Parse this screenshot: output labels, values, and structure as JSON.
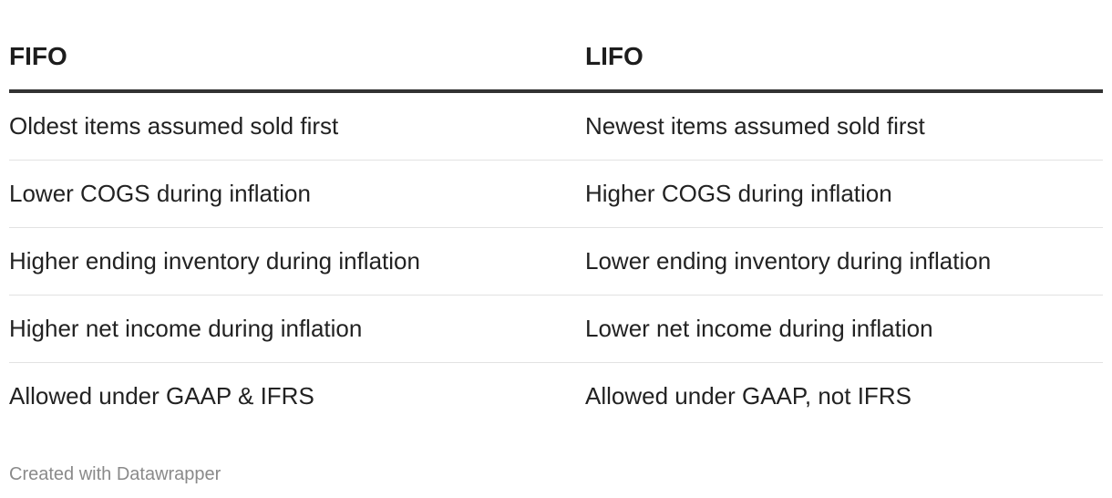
{
  "chart_data": {
    "type": "table",
    "columns": [
      "FIFO",
      "LIFO"
    ],
    "rows": [
      [
        "Oldest items assumed sold first",
        "Newest items assumed sold first"
      ],
      [
        "Lower COGS during inflation",
        "Higher COGS during inflation"
      ],
      [
        "Higher ending inventory during inflation",
        "Lower ending inventory during inflation"
      ],
      [
        "Higher net income during inflation",
        "Lower net income during inflation"
      ],
      [
        "Allowed under GAAP & IFRS",
        "Allowed under GAAP, not IFRS"
      ]
    ]
  },
  "footer": {
    "credit": "Created with Datawrapper"
  }
}
